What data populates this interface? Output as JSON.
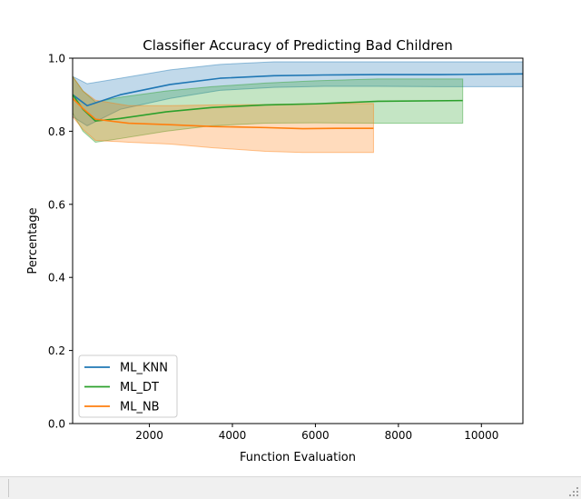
{
  "chart_data": {
    "type": "line",
    "title": "Classifier Accuracy of Predicting Bad Children",
    "xlabel": "Function Evaluation",
    "ylabel": "Percentage",
    "xlim": [
      150,
      11000
    ],
    "ylim": [
      0.0,
      1.0
    ],
    "xticks": [
      2000,
      4000,
      6000,
      8000,
      10000
    ],
    "yticks": [
      0.0,
      0.2,
      0.4,
      0.6,
      0.8,
      1.0
    ],
    "xtick_labels": [
      "2000",
      "4000",
      "6000",
      "8000",
      "10000"
    ],
    "ytick_labels": [
      "0.0",
      "0.2",
      "0.4",
      "0.6",
      "0.8",
      "1.0"
    ],
    "grid": false,
    "legend": "lower-left",
    "series": [
      {
        "name": "ML_KNN",
        "color": "#1f77b4",
        "x": [
          150,
          500,
          1300,
          2500,
          3700,
          5000,
          6200,
          7500,
          9000,
          11000
        ],
        "y": [
          0.9,
          0.87,
          0.9,
          0.928,
          0.945,
          0.952,
          0.954,
          0.955,
          0.955,
          0.957
        ],
        "lower": [
          0.84,
          0.815,
          0.86,
          0.89,
          0.912,
          0.92,
          0.923,
          0.923,
          0.922,
          0.922
        ],
        "upper": [
          0.95,
          0.93,
          0.945,
          0.968,
          0.983,
          0.99,
          0.99,
          0.99,
          0.99,
          0.99
        ]
      },
      {
        "name": "ML_DT",
        "color": "#2ca02c",
        "x": [
          150,
          400,
          700,
          1300,
          2400,
          3500,
          4800,
          6000,
          7500,
          9550
        ],
        "y": [
          0.9,
          0.86,
          0.828,
          0.835,
          0.853,
          0.865,
          0.872,
          0.875,
          0.882,
          0.884
        ],
        "lower": [
          0.85,
          0.8,
          0.77,
          0.78,
          0.8,
          0.815,
          0.822,
          0.823,
          0.822,
          0.822
        ],
        "upper": [
          0.95,
          0.91,
          0.88,
          0.893,
          0.91,
          0.922,
          0.932,
          0.938,
          0.943,
          0.943
        ]
      },
      {
        "name": "ML_NB",
        "color": "#ff7f0e",
        "x": [
          150,
          400,
          700,
          1500,
          2500,
          3500,
          4800,
          5700,
          6500,
          7400
        ],
        "y": [
          0.89,
          0.862,
          0.833,
          0.822,
          0.818,
          0.813,
          0.81,
          0.807,
          0.808,
          0.808
        ],
        "lower": [
          0.84,
          0.805,
          0.775,
          0.77,
          0.765,
          0.755,
          0.745,
          0.742,
          0.742,
          0.742
        ],
        "upper": [
          0.95,
          0.91,
          0.885,
          0.87,
          0.87,
          0.872,
          0.873,
          0.875,
          0.876,
          0.876
        ]
      }
    ]
  }
}
